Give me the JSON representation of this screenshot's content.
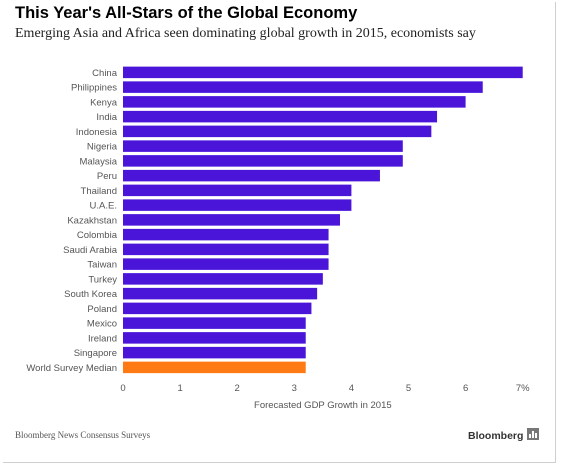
{
  "header": {
    "title": "This Year's All-Stars of the Global Economy",
    "subtitle": "Emerging Asia and Africa seen dominating global growth in 2015, economists say"
  },
  "footer": {
    "source": "Bloomberg News Consensus Surveys",
    "brand": "Bloomberg",
    "brand_icon": "bar-chart-icon"
  },
  "colors": {
    "bar": "#4a14d9",
    "median_bar": "#ff7a14",
    "axis_text": "#555555"
  },
  "chart_data": {
    "type": "bar",
    "orientation": "horizontal",
    "categories": [
      "China",
      "Philippines",
      "Kenya",
      "India",
      "Indonesia",
      "Nigeria",
      "Malaysia",
      "Peru",
      "Thailand",
      "U.A.E.",
      "Kazakhstan",
      "Colombia",
      "Saudi Arabia",
      "Taiwan",
      "Turkey",
      "South Korea",
      "Poland",
      "Mexico",
      "Ireland",
      "Singapore",
      "World Survey Median"
    ],
    "values": [
      7.0,
      6.3,
      6.0,
      5.5,
      5.4,
      4.9,
      4.9,
      4.5,
      4.0,
      4.0,
      3.8,
      3.6,
      3.6,
      3.6,
      3.5,
      3.4,
      3.3,
      3.2,
      3.2,
      3.2,
      3.2
    ],
    "highlight": "World Survey Median",
    "xlabel": "Forecasted GDP Growth in 2015",
    "ylabel": "",
    "xlim": [
      0,
      7
    ],
    "xticks": [
      "0",
      "1",
      "2",
      "3",
      "4",
      "5",
      "6",
      "7%"
    ],
    "grid": false,
    "legend": "none"
  }
}
